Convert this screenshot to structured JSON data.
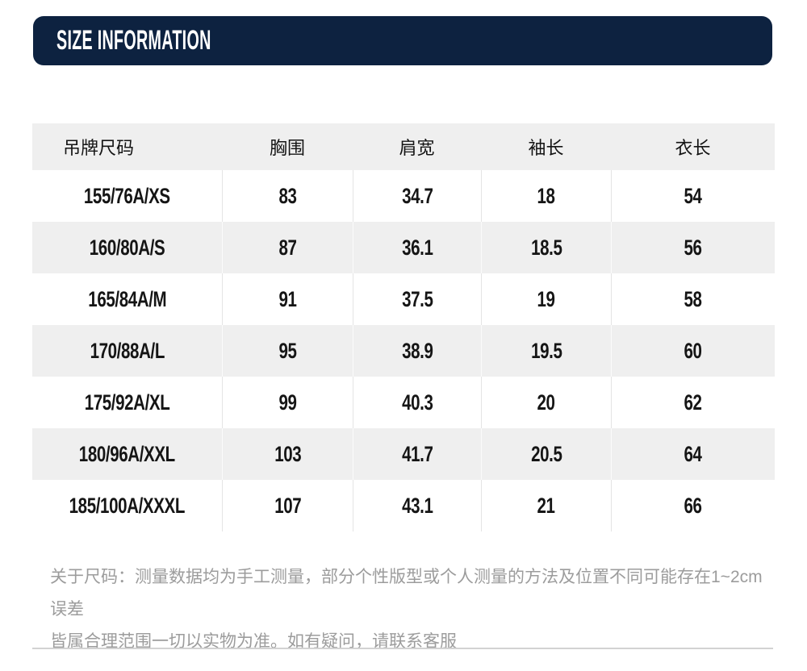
{
  "header": {
    "title": "SIZE INFORMATION"
  },
  "table": {
    "columns": [
      "吊牌尺码",
      "胸围",
      "肩宽",
      "袖长",
      "衣长"
    ],
    "rows": [
      [
        "155/76A/XS",
        "83",
        "34.7",
        "18",
        "54"
      ],
      [
        "160/80A/S",
        "87",
        "36.1",
        "18.5",
        "56"
      ],
      [
        "165/84A/M",
        "91",
        "37.5",
        "19",
        "58"
      ],
      [
        "170/88A/L",
        "95",
        "38.9",
        "19.5",
        "60"
      ],
      [
        "175/92A/XL",
        "99",
        "40.3",
        "20",
        "62"
      ],
      [
        "180/96A/XXL",
        "103",
        "41.7",
        "20.5",
        "64"
      ],
      [
        "185/100A/XXXL",
        "107",
        "43.1",
        "21",
        "66"
      ]
    ]
  },
  "note": {
    "lines": [
      "关于尺码：测量数据均为手工测量，部分个性版型或个人测量的方法及位置不同可能存在1~2cm误差",
      "皆属合理范围一切以实物为准。如有疑问，请联系客服"
    ]
  },
  "colors": {
    "accent_navy": "#0d2240",
    "row_stripe": "#efefef",
    "divider": "#e4e4e4",
    "note_gray": "#9c9c9c",
    "bottom_line": "#d2d2d2"
  }
}
